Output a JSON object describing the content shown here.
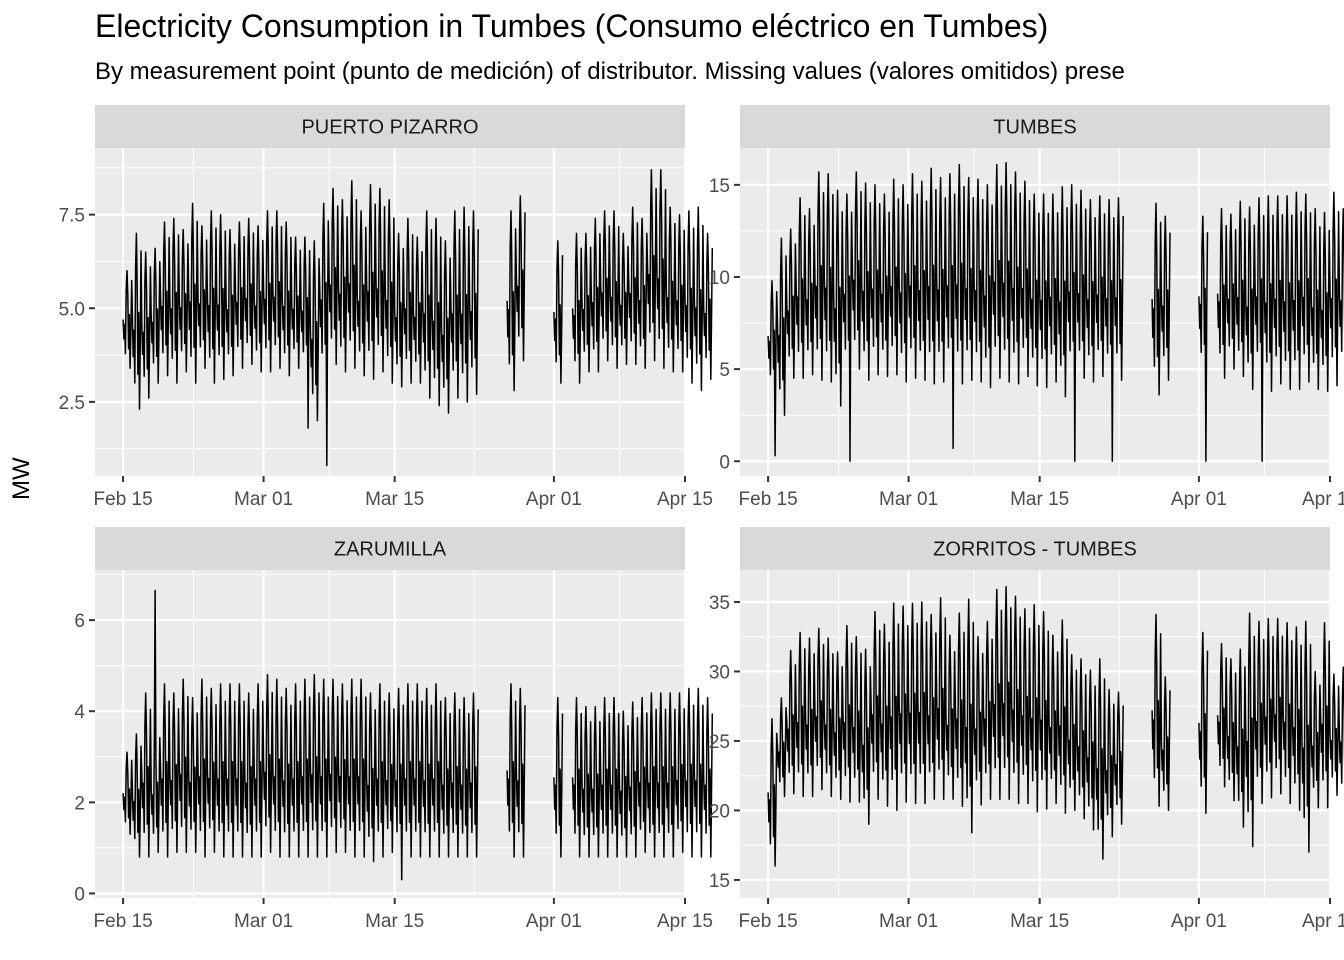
{
  "chart_data": {
    "type": "line",
    "title": "Electricity Consumption in Tumbes (Consumo eléctrico en Tumbes)",
    "subtitle": "By measurement point (punto de medición) of distributor. Missing values (valores omitidos) prese",
    "ylabel": "MW",
    "xlabel": "",
    "x_range": [
      "2020-02-12",
      "2020-04-15"
    ],
    "x_ticks": [
      "Feb 15",
      "Mar 01",
      "Mar 15",
      "Apr 01",
      "Apr 15"
    ],
    "grid": true,
    "legend": "none",
    "line_color": "#000000",
    "panel_background": "#ebebeb",
    "strip_background": "#d9d9d9",
    "gaps": [
      [
        "2020-03-24",
        "2020-03-27"
      ],
      [
        "2020-03-29",
        "2020-04-01"
      ],
      [
        "2020-04-02",
        "2020-04-03"
      ]
    ],
    "panels": [
      {
        "name": "PUERTO PIZARRO",
        "ylim": [
          0.52,
          9.28
        ],
        "y_ticks": [
          2.5,
          5.0,
          7.5
        ],
        "y_tick_labels": [
          "2.5",
          "5.0",
          "7.5"
        ],
        "daily_min": [
          3.4,
          2.3,
          2.6,
          3.0,
          3.2,
          3.0,
          3.3,
          3.0,
          3.4,
          3.0,
          3.1,
          3.2,
          3.4,
          3.5,
          3.3,
          3.3,
          3.4,
          3.2,
          3.4,
          3.3,
          2.0,
          3.1,
          3.5,
          3.3,
          3.4,
          3.2,
          3.1,
          3.3,
          3.0,
          2.9,
          3.0,
          3.0,
          2.6,
          2.4,
          2.2,
          2.6,
          2.5,
          2.7,
          2.8,
          2.7,
          2.6,
          2.8,
          3.6,
          3.7,
          3.5,
          3.3,
          3.0,
          3.4,
          3.0,
          3.3,
          3.3,
          3.6,
          3.4,
          3.5,
          3.5,
          3.4,
          3.6,
          3.4,
          3.3,
          3.3,
          3.0,
          2.8,
          3.1
        ],
        "daily_max": [
          6.0,
          7.0,
          6.5,
          6.6,
          7.3,
          7.4,
          7.1,
          7.8,
          7.2,
          7.6,
          7.5,
          7.1,
          7.3,
          7.4,
          7.2,
          7.6,
          7.6,
          7.3,
          6.9,
          6.9,
          6.8,
          7.8,
          8.2,
          7.9,
          8.4,
          7.6,
          8.3,
          8.2,
          7.9,
          7.0,
          7.4,
          6.9,
          7.6,
          7.4,
          6.8,
          7.6,
          7.7,
          7.6,
          7.8,
          7.3,
          6.8,
          7.6,
          8.0,
          7.3,
          7.0,
          7.0,
          6.8,
          6.9,
          7.0,
          7.0,
          7.4,
          7.6,
          7.6,
          7.0,
          7.7,
          7.4,
          8.7,
          8.7,
          7.7,
          7.5,
          7.6,
          7.7,
          7.0
        ],
        "dips": [
          [
            "2020-03-05",
            1.8
          ],
          [
            "2020-03-07",
            0.8
          ]
        ]
      },
      {
        "name": "TUMBES",
        "ylim": [
          -0.8,
          17.0
        ],
        "y_ticks": [
          0,
          5,
          10,
          15
        ],
        "y_tick_labels": [
          "0",
          "5",
          "10",
          "15"
        ],
        "daily_min": [
          3.8,
          2.5,
          4.5,
          4.5,
          4.7,
          4.4,
          4.3,
          3.0,
          4.6,
          5.0,
          4.4,
          4.7,
          4.6,
          4.7,
          4.3,
          4.5,
          4.4,
          4.2,
          4.3,
          4.5,
          4.2,
          4.4,
          4.3,
          4.0,
          4.5,
          4.3,
          4.2,
          4.6,
          4.1,
          4.0,
          4.3,
          3.5,
          4.4,
          4.5,
          4.3,
          4.6,
          4.4,
          4.4,
          4.5,
          4.4,
          4.5,
          3.6,
          4.4,
          4.7,
          4.4,
          4.7,
          4.6,
          4.8,
          4.5,
          5.0,
          4.6,
          3.9,
          4.5,
          3.8,
          4.2,
          3.9,
          3.9,
          4.3,
          3.9,
          3.8,
          4.1,
          4.6,
          4.8
        ],
        "daily_max": [
          9.8,
          12.1,
          12.6,
          14.3,
          13.7,
          15.7,
          15.6,
          14.7,
          14.5,
          15.7,
          15.1,
          15.0,
          14.5,
          15.3,
          15.0,
          15.6,
          15.2,
          15.9,
          15.4,
          15.6,
          16.1,
          15.4,
          15.3,
          15.0,
          16.1,
          16.2,
          15.7,
          15.2,
          14.5,
          14.5,
          14.5,
          14.9,
          15.0,
          14.7,
          14.2,
          14.4,
          14.2,
          14.3,
          14.1,
          14.1,
          13.7,
          14.0,
          13.3,
          14.9,
          12.9,
          13.1,
          13.3,
          14.1,
          13.7,
          13.4,
          14.1,
          13.8,
          14.3,
          14.4,
          14.4,
          14.4,
          14.6,
          14.5,
          13.7,
          13.5,
          14.6,
          13.7,
          13.6
        ],
        "dips": [
          [
            "2020-02-15",
            0.3
          ],
          [
            "2020-02-23",
            0.0
          ],
          [
            "2020-03-05",
            0.7
          ],
          [
            "2020-03-18",
            0.0
          ],
          [
            "2020-03-22",
            0.0
          ],
          [
            "2020-04-01",
            0.0
          ],
          [
            "2020-04-07",
            0.0
          ]
        ]
      },
      {
        "name": "ZARUMILLA",
        "ylim": [
          -0.1,
          7.1
        ],
        "y_ticks": [
          0,
          2,
          4,
          6
        ],
        "y_tick_labels": [
          "0",
          "2",
          "4",
          "6"
        ],
        "daily_min": [
          1.3,
          0.8,
          0.8,
          0.9,
          0.8,
          0.9,
          0.9,
          0.9,
          0.8,
          0.9,
          0.8,
          0.8,
          0.8,
          0.8,
          0.8,
          0.9,
          0.8,
          0.8,
          0.8,
          0.8,
          0.8,
          0.8,
          0.9,
          0.9,
          0.8,
          0.8,
          0.7,
          0.8,
          0.9,
          0.8,
          0.8,
          0.8,
          0.8,
          0.8,
          0.8,
          0.8,
          0.8,
          0.8,
          0.8,
          0.8,
          0.8,
          0.8,
          0.8,
          0.9,
          0.8,
          0.8,
          0.8,
          0.8,
          0.8,
          0.8,
          0.8,
          0.8,
          0.8,
          0.8,
          0.8,
          0.9,
          0.8,
          0.8,
          0.8,
          0.9,
          0.8,
          0.8,
          0.8
        ],
        "daily_max": [
          3.1,
          3.5,
          4.4,
          3.7,
          4.6,
          4.4,
          4.7,
          4.3,
          4.7,
          4.5,
          4.6,
          4.6,
          4.6,
          4.4,
          4.6,
          4.8,
          4.7,
          4.5,
          4.6,
          4.7,
          4.8,
          4.7,
          4.7,
          4.6,
          4.7,
          4.7,
          4.4,
          4.6,
          4.4,
          4.5,
          4.6,
          4.6,
          4.5,
          4.6,
          4.3,
          4.4,
          4.3,
          4.4,
          4.5,
          4.5,
          4.5,
          4.6,
          4.5,
          4.4,
          4.2,
          4.1,
          4.3,
          4.4,
          4.3,
          4.1,
          4.1,
          4.3,
          4.3,
          4.0,
          4.2,
          4.3,
          4.4,
          4.4,
          4.4,
          4.4,
          4.5,
          4.5,
          4.3
        ],
        "spikes": [
          [
            "2020-02-18",
            6.65
          ]
        ],
        "dips": [
          [
            "2020-03-15",
            0.3
          ]
        ]
      },
      {
        "name": "ZORRITOS - TUMBES",
        "ylim": [
          13.7,
          37.3
        ],
        "y_ticks": [
          15,
          20,
          25,
          30,
          35
        ],
        "y_tick_labels": [
          "15",
          "20",
          "25",
          "30",
          "35"
        ],
        "daily_min": [
          16.0,
          21.0,
          21.2,
          21.0,
          21.0,
          21.5,
          21.0,
          20.8,
          20.6,
          20.6,
          19.0,
          20.8,
          20.3,
          20.0,
          20.6,
          20.5,
          20.5,
          20.8,
          20.8,
          20.8,
          20.3,
          18.4,
          20.4,
          20.8,
          20.8,
          20.8,
          20.5,
          20.5,
          19.9,
          20.1,
          20.5,
          19.8,
          20.0,
          19.4,
          18.6,
          16.5,
          18.1,
          19.0,
          14.0,
          19.5,
          20.0,
          20.3,
          20.0,
          20.0,
          20.0,
          20.0,
          19.8,
          20.0,
          21.7,
          20.7,
          18.8,
          17.4,
          20.5,
          20.9,
          21.2,
          20.5,
          20.0,
          17.0,
          20.2,
          20.2,
          21.1,
          20.5,
          20.5
        ],
        "daily_max": [
          26.6,
          28.1,
          31.5,
          32.8,
          32.4,
          33.1,
          32.4,
          31.4,
          33.3,
          32.5,
          31.6,
          34.3,
          33.4,
          34.9,
          34.7,
          34.9,
          35.0,
          34.1,
          35.3,
          32.6,
          34.2,
          35.2,
          32.5,
          33.6,
          35.9,
          36.1,
          35.4,
          34.5,
          34.8,
          34.3,
          32.6,
          33.7,
          31.2,
          30.9,
          30.1,
          30.9,
          28.7,
          28.5,
          29.8,
          31.0,
          29.4,
          34.1,
          29.6,
          31.2,
          31.2,
          31.0,
          32.8,
          31.8,
          32.0,
          30.9,
          31.6,
          34.2,
          33.6,
          33.8,
          33.8,
          33.5,
          33.2,
          33.6,
          30.0,
          33.5,
          29.8,
          30.3,
          29.5
        ]
      }
    ]
  }
}
